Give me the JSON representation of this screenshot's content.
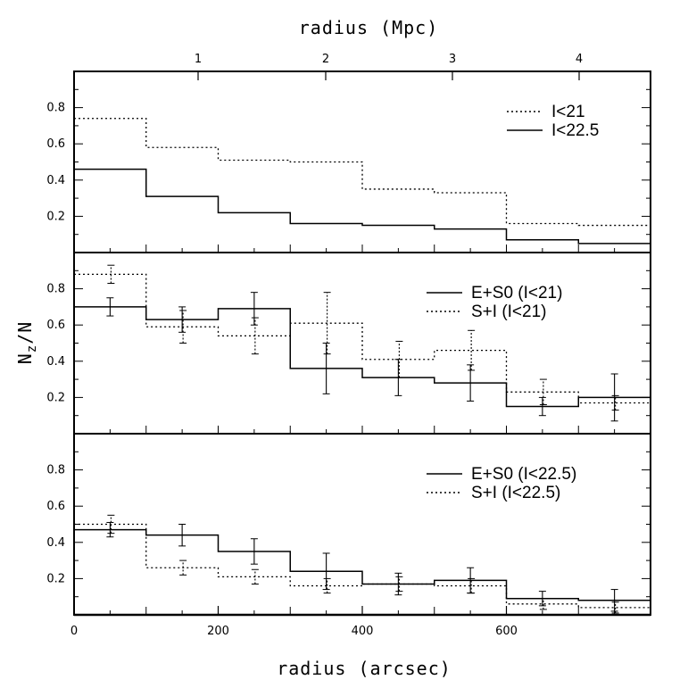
{
  "chart_data": {
    "type": "line",
    "x_axis": {
      "label": "radius (arcsec)",
      "range": [
        0,
        800
      ],
      "ticks": [
        0,
        200,
        400,
        600
      ],
      "tick_labels": [
        "0",
        "200",
        "400",
        "600"
      ]
    },
    "top_axis": {
      "label": "radius (Mpc)",
      "ticks": [
        1,
        2,
        3,
        4
      ],
      "tick_labels": [
        "1",
        "2",
        "3",
        "4"
      ]
    },
    "y_axis": {
      "label_main": "N",
      "label_sub": "z",
      "label_suffix": "/N",
      "range": [
        0,
        1.0
      ],
      "ticks": [
        0.2,
        0.4,
        0.6,
        0.8
      ],
      "tick_labels": [
        "0.2",
        "0.4",
        "0.6",
        "0.8"
      ]
    },
    "bin_edges": [
      0,
      100,
      200,
      300,
      400,
      500,
      600,
      700,
      800
    ],
    "panels": [
      {
        "legend_position": "top-right",
        "series": [
          {
            "name": "I<21",
            "style": "dotted",
            "values": [
              0.74,
              0.58,
              0.51,
              0.5,
              0.35,
              0.33,
              0.16,
              0.15
            ],
            "errors": null
          },
          {
            "name": "I<22.5",
            "style": "solid",
            "values": [
              0.46,
              0.31,
              0.22,
              0.16,
              0.15,
              0.13,
              0.07,
              0.05
            ],
            "errors": null
          }
        ]
      },
      {
        "legend_position": "top-right",
        "series": [
          {
            "name": "E+S0 (I<21)",
            "style": "solid",
            "values": [
              0.7,
              0.63,
              0.69,
              0.36,
              0.31,
              0.28,
              0.15,
              0.2
            ],
            "errors": [
              0.05,
              0.07,
              0.09,
              0.14,
              0.1,
              0.1,
              0.05,
              0.13
            ]
          },
          {
            "name": "S+I (I<21)",
            "style": "dotted",
            "values": [
              0.88,
              0.59,
              0.54,
              0.61,
              0.41,
              0.46,
              0.23,
              0.17
            ],
            "errors": [
              0.05,
              0.09,
              0.1,
              0.17,
              0.1,
              0.11,
              0.07,
              0.04
            ]
          }
        ]
      },
      {
        "legend_position": "top-right",
        "series": [
          {
            "name": "E+S0 (I<22.5)",
            "style": "solid",
            "values": [
              0.47,
              0.44,
              0.35,
              0.24,
              0.17,
              0.19,
              0.09,
              0.08
            ],
            "errors": [
              0.04,
              0.06,
              0.07,
              0.1,
              0.06,
              0.07,
              0.04,
              0.06
            ]
          },
          {
            "name": "S+I (I<22.5)",
            "style": "dotted",
            "values": [
              0.5,
              0.26,
              0.21,
              0.16,
              0.17,
              0.16,
              0.06,
              0.04
            ],
            "errors": [
              0.05,
              0.04,
              0.04,
              0.04,
              0.04,
              0.04,
              0.03,
              0.03
            ]
          }
        ]
      }
    ]
  }
}
